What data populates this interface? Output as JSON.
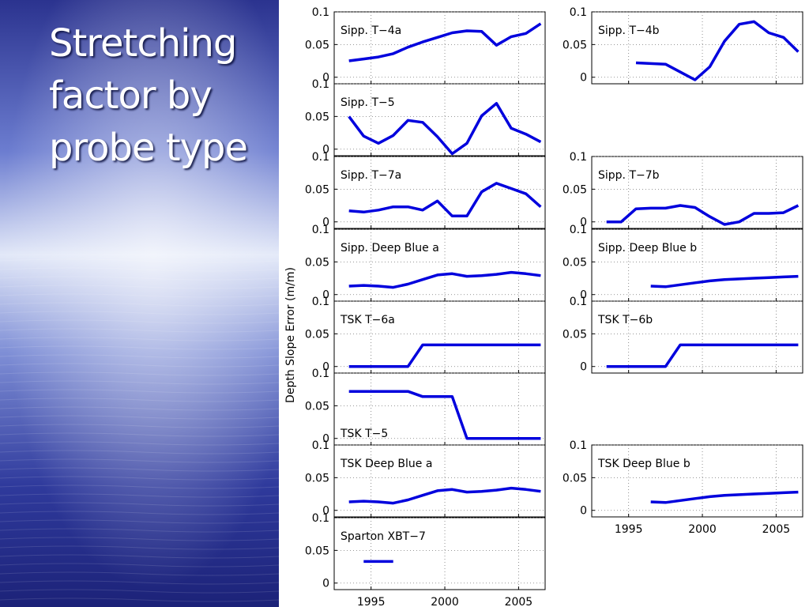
{
  "slide": {
    "title_lines": [
      "Stretching",
      "factor by",
      "probe type"
    ]
  },
  "colors": {
    "background_gradient": [
      "#2b338f",
      "#6c7dd0",
      "#e2e8f8",
      "#7f8fd6",
      "#2f3a9c",
      "#1c2278"
    ],
    "series": "#0000dd",
    "grid": "#777777",
    "axis": "#000000"
  },
  "chart_data": {
    "type": "line",
    "shared_ylabel": "Depth Slope Error (m/m)",
    "xlim": [
      1992.5,
      2006.8
    ],
    "ylim": [
      -0.01,
      0.1
    ],
    "xticks": [
      1995,
      2000,
      2005
    ],
    "yticks": [
      0,
      0.05,
      0.1
    ],
    "ytick_labels": [
      "0",
      "0.05",
      "0.1"
    ],
    "grid": true,
    "panels": [
      {
        "title": "Sipp. T−4a",
        "column": 0,
        "row": 0,
        "x": [
          1993.5,
          1994.5,
          1995.5,
          1996.5,
          1997.5,
          1998.5,
          1999.5,
          2000.5,
          2001.5,
          2002.5,
          2003.5,
          2004.5,
          2005.5,
          2006.5
        ],
        "y": [
          0.025,
          0.028,
          0.031,
          0.036,
          0.046,
          0.054,
          0.061,
          0.068,
          0.071,
          0.07,
          0.049,
          0.062,
          0.067,
          0.082
        ]
      },
      {
        "title": "Sipp. T−4b",
        "column": 1,
        "row": 0,
        "x": [
          1995.5,
          1996.5,
          1997.5,
          1998.5,
          1999.5,
          2000.5,
          2001.5,
          2002.5,
          2003.5,
          2004.5,
          2005.5,
          2006.5
        ],
        "y": [
          0.022,
          0.021,
          0.02,
          0.008,
          -0.004,
          0.016,
          0.055,
          0.081,
          0.085,
          0.068,
          0.061,
          0.039
        ]
      },
      {
        "title": "Sipp. T−5",
        "column": 0,
        "row": 1,
        "x": [
          1993.5,
          1994.5,
          1995.5,
          1996.5,
          1997.5,
          1998.5,
          1999.5,
          2000.5,
          2001.5,
          2002.5,
          2003.5,
          2004.5,
          2005.5,
          2006.5
        ],
        "y": [
          0.05,
          0.02,
          0.009,
          0.021,
          0.044,
          0.041,
          0.019,
          -0.007,
          0.009,
          0.051,
          0.07,
          0.032,
          0.023,
          0.011
        ]
      },
      {
        "title": "Sipp. T−7a",
        "column": 0,
        "row": 2,
        "x": [
          1993.5,
          1994.5,
          1995.5,
          1996.5,
          1997.5,
          1998.5,
          1999.5,
          2000.5,
          2001.5,
          2002.5,
          2003.5,
          2004.5,
          2005.5,
          2006.5
        ],
        "y": [
          0.017,
          0.015,
          0.018,
          0.023,
          0.023,
          0.018,
          0.032,
          0.009,
          0.009,
          0.046,
          0.059,
          0.051,
          0.043,
          0.023
        ]
      },
      {
        "title": "Sipp. T−7b",
        "column": 1,
        "row": 2,
        "x": [
          1993.5,
          1994.5,
          1995.5,
          1996.5,
          1997.5,
          1998.5,
          1999.5,
          2000.5,
          2001.5,
          2002.5,
          2003.5,
          2004.5,
          2005.5,
          2006.5
        ],
        "y": [
          0.0,
          0.0,
          0.02,
          0.021,
          0.021,
          0.025,
          0.022,
          0.008,
          -0.004,
          0.0,
          0.013,
          0.013,
          0.014,
          0.025
        ]
      },
      {
        "title": "Sipp. Deep Blue a",
        "column": 0,
        "row": 3,
        "x": [
          1993.5,
          1994.5,
          1995.5,
          1996.5,
          1997.5,
          1998.5,
          1999.5,
          2000.5,
          2001.5,
          2002.5,
          2003.5,
          2004.5,
          2005.5,
          2006.5
        ],
        "y": [
          0.013,
          0.014,
          0.013,
          0.011,
          0.016,
          0.023,
          0.03,
          0.032,
          0.028,
          0.029,
          0.031,
          0.034,
          0.032,
          0.029
        ]
      },
      {
        "title": "Sipp. Deep Blue b",
        "column": 1,
        "row": 3,
        "x": [
          1996.5,
          1997.5,
          1998.5,
          1999.5,
          2000.5,
          2001.5,
          2002.5,
          2003.5,
          2004.5,
          2005.5,
          2006.5
        ],
        "y": [
          0.013,
          0.012,
          0.015,
          0.018,
          0.021,
          0.023,
          0.024,
          0.025,
          0.026,
          0.027,
          0.028
        ]
      },
      {
        "title": "TSK T−6a",
        "column": 0,
        "row": 4,
        "x": [
          1993.5,
          1997.5,
          1998.5,
          2006.5
        ],
        "y": [
          0.0,
          0.0,
          0.033,
          0.033
        ]
      },
      {
        "title": "TSK T−6b",
        "column": 1,
        "row": 4,
        "x": [
          1993.5,
          1997.5,
          1998.5,
          2006.5
        ],
        "y": [
          0.0,
          0.0,
          0.033,
          0.033
        ]
      },
      {
        "title": "TSK T−5",
        "column": 0,
        "row": 5,
        "title_position": "bottom-left",
        "x": [
          1993.5,
          1997.5,
          1998.5,
          2000.5,
          2001.5,
          2006.5
        ],
        "y": [
          0.072,
          0.072,
          0.064,
          0.064,
          0.0,
          0.0
        ]
      },
      {
        "title": "TSK Deep Blue a",
        "column": 0,
        "row": 6,
        "x": [
          1993.5,
          1994.5,
          1995.5,
          1996.5,
          1997.5,
          1998.5,
          1999.5,
          2000.5,
          2001.5,
          2002.5,
          2003.5,
          2004.5,
          2005.5,
          2006.5
        ],
        "y": [
          0.013,
          0.014,
          0.013,
          0.011,
          0.016,
          0.023,
          0.03,
          0.032,
          0.028,
          0.029,
          0.031,
          0.034,
          0.032,
          0.029
        ]
      },
      {
        "title": "TSK Deep Blue b",
        "column": 1,
        "row": 6,
        "x": [
          1996.5,
          1997.5,
          1998.5,
          1999.5,
          2000.5,
          2001.5,
          2002.5,
          2003.5,
          2004.5,
          2005.5,
          2006.5
        ],
        "y": [
          0.013,
          0.012,
          0.015,
          0.018,
          0.021,
          0.023,
          0.024,
          0.025,
          0.026,
          0.027,
          0.028
        ]
      },
      {
        "title": "Sparton XBT−7",
        "column": 0,
        "row": 7,
        "x": [
          1994.5,
          1996.5
        ],
        "y": [
          0.033,
          0.033
        ]
      }
    ]
  }
}
